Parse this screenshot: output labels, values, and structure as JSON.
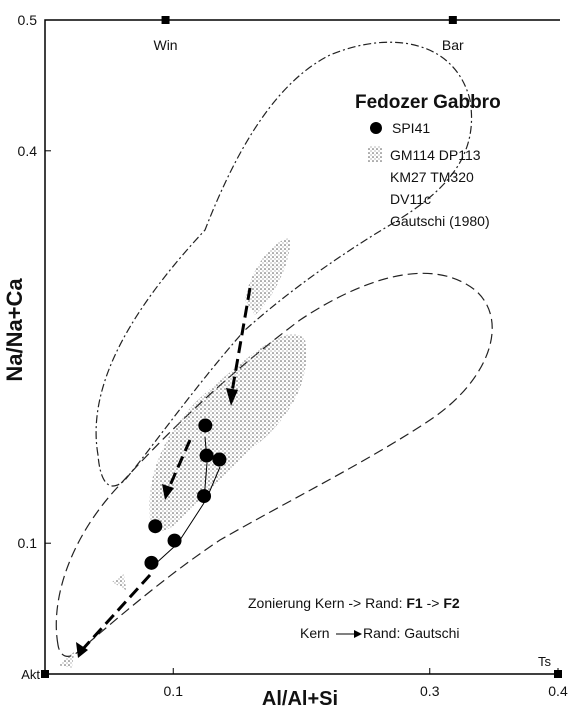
{
  "chart_data": {
    "type": "scatter",
    "title": "Fedozer Gabbro",
    "x_label": "Al/Al+Si",
    "y_label": "Na/Na+Ca",
    "xlim": [
      0,
      0.4
    ],
    "ylim": [
      0,
      0.5
    ],
    "xticks": [
      0.1,
      0.3,
      0.4
    ],
    "yticks": [
      0.1,
      0.4,
      0.5
    ],
    "top_ticks": [
      {
        "value": 0.094,
        "label": "Win"
      },
      {
        "value": 0.318,
        "label": "Bar"
      }
    ],
    "corner_labels": [
      "Akt",
      "Ts"
    ],
    "series": [
      {
        "name": "SPI41",
        "color": "#000000",
        "x": [
          0.125,
          0.126,
          0.136,
          0.124,
          0.086,
          0.101,
          0.083
        ],
        "values": [
          0.19,
          0.167,
          0.164,
          0.136,
          0.113,
          0.102,
          0.085
        ]
      }
    ],
    "legend_shaded": [
      "GM114 DP113",
      "KM27 TM320",
      "DV11c",
      "Gautschi (1980)"
    ],
    "annotations": {
      "zonierung": [
        "Zonierung Kern -> Rand: ",
        "F1",
        " -> ",
        "F2"
      ],
      "kern": "Kern",
      "rand": "Rand: Gautschi"
    }
  }
}
